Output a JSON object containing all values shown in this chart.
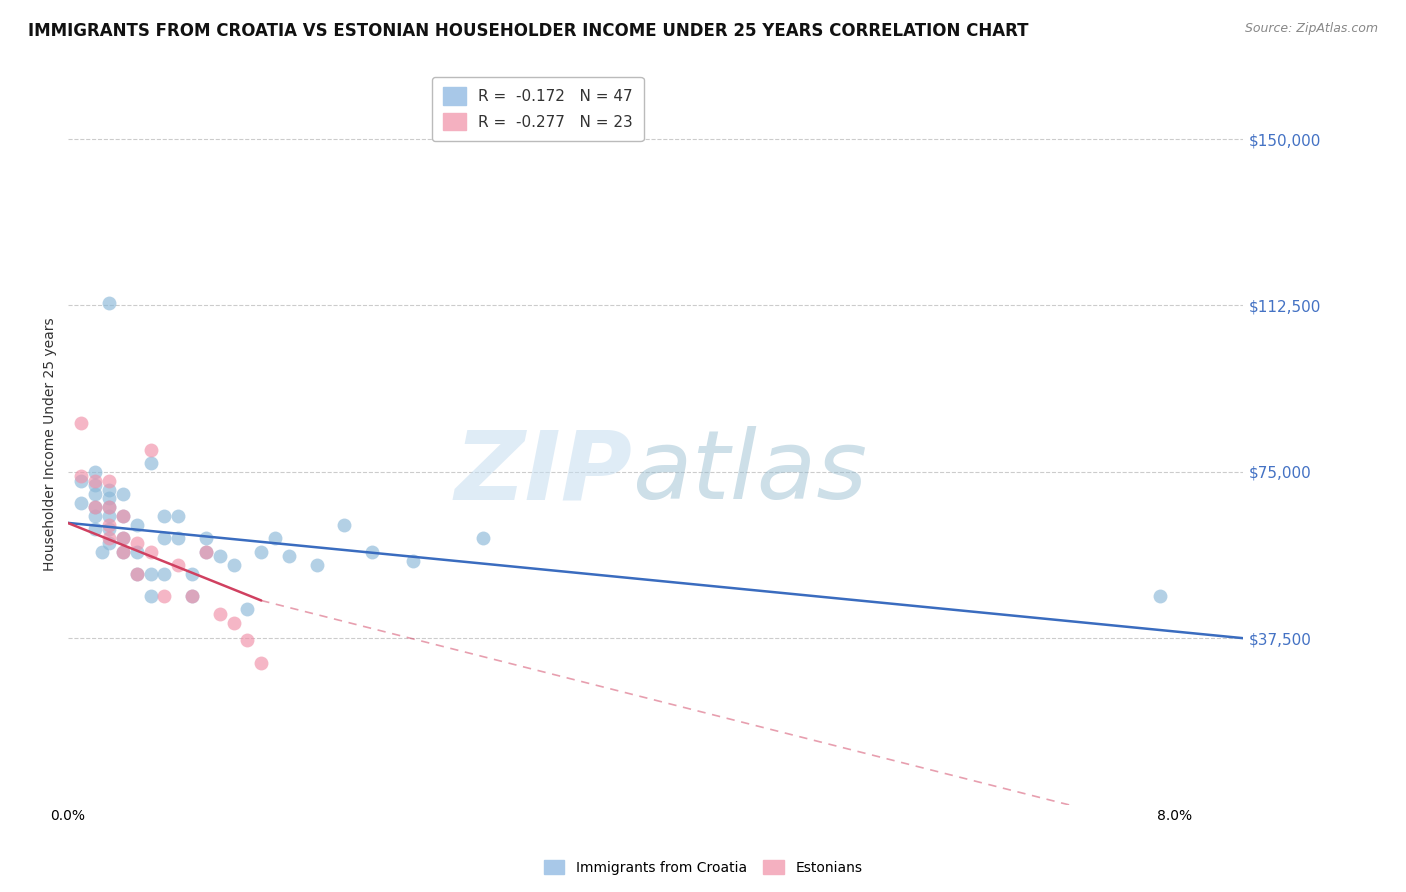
{
  "title": "IMMIGRANTS FROM CROATIA VS ESTONIAN HOUSEHOLDER INCOME UNDER 25 YEARS CORRELATION CHART",
  "source": "Source: ZipAtlas.com",
  "ylabel": "Householder Income Under 25 years",
  "ytick_labels": [
    "$37,500",
    "$75,000",
    "$112,500",
    "$150,000"
  ],
  "ytick_values": [
    37500,
    75000,
    112500,
    150000
  ],
  "ylim": [
    0,
    162500
  ],
  "xlim": [
    0.0,
    0.085
  ],
  "xtick_positions": [
    0.0,
    0.01,
    0.02,
    0.03,
    0.04,
    0.05,
    0.06,
    0.07,
    0.08
  ],
  "xtick_labels": [
    "0.0%",
    "",
    "",
    "",
    "",
    "",
    "",
    "",
    "8.0%"
  ],
  "legend_entries": [
    {
      "label": "R =  -0.172   N = 47",
      "color": "#a8c8e8"
    },
    {
      "label": "R =  -0.277   N = 23",
      "color": "#f4b0c0"
    }
  ],
  "croatia_scatter": {
    "x": [
      0.001,
      0.001,
      0.002,
      0.002,
      0.002,
      0.002,
      0.002,
      0.002,
      0.0025,
      0.003,
      0.003,
      0.003,
      0.003,
      0.003,
      0.003,
      0.003,
      0.004,
      0.004,
      0.004,
      0.004,
      0.005,
      0.005,
      0.005,
      0.006,
      0.006,
      0.006,
      0.007,
      0.007,
      0.007,
      0.008,
      0.008,
      0.009,
      0.009,
      0.01,
      0.01,
      0.011,
      0.012,
      0.013,
      0.014,
      0.015,
      0.016,
      0.018,
      0.02,
      0.022,
      0.025,
      0.03,
      0.079
    ],
    "y": [
      68000,
      73000,
      62000,
      65000,
      67000,
      70000,
      72000,
      75000,
      57000,
      59000,
      62000,
      65000,
      67000,
      69000,
      71000,
      113000,
      57000,
      60000,
      65000,
      70000,
      52000,
      57000,
      63000,
      47000,
      52000,
      77000,
      52000,
      60000,
      65000,
      60000,
      65000,
      47000,
      52000,
      57000,
      60000,
      56000,
      54000,
      44000,
      57000,
      60000,
      56000,
      54000,
      63000,
      57000,
      55000,
      60000,
      47000
    ],
    "color": "#8ab8d8",
    "size": 100
  },
  "estonian_scatter": {
    "x": [
      0.001,
      0.001,
      0.002,
      0.002,
      0.003,
      0.003,
      0.003,
      0.003,
      0.004,
      0.004,
      0.004,
      0.005,
      0.005,
      0.006,
      0.006,
      0.007,
      0.008,
      0.009,
      0.01,
      0.011,
      0.012,
      0.013,
      0.014
    ],
    "y": [
      86000,
      74000,
      67000,
      73000,
      60000,
      63000,
      67000,
      73000,
      57000,
      60000,
      65000,
      52000,
      59000,
      57000,
      80000,
      47000,
      54000,
      47000,
      57000,
      43000,
      41000,
      37000,
      32000
    ],
    "color": "#f090a8",
    "size": 100
  },
  "croatia_trendline": {
    "x": [
      0.0,
      0.085
    ],
    "y": [
      63500,
      37500
    ],
    "color": "#3a6cbf",
    "linewidth": 1.8
  },
  "estonian_trendline_solid": {
    "x": [
      0.0,
      0.014
    ],
    "y": [
      63500,
      46000
    ],
    "color": "#d04060",
    "linewidth": 1.8
  },
  "estonian_trendline_dashed": {
    "x": [
      0.014,
      0.085
    ],
    "y": [
      46000,
      -10000
    ],
    "color": "#d04060",
    "linewidth": 1.2,
    "alpha": 0.5
  },
  "grid_color": "#cccccc",
  "background_color": "#ffffff",
  "title_fontsize": 12,
  "axis_label_fontsize": 10,
  "tick_fontsize": 10
}
